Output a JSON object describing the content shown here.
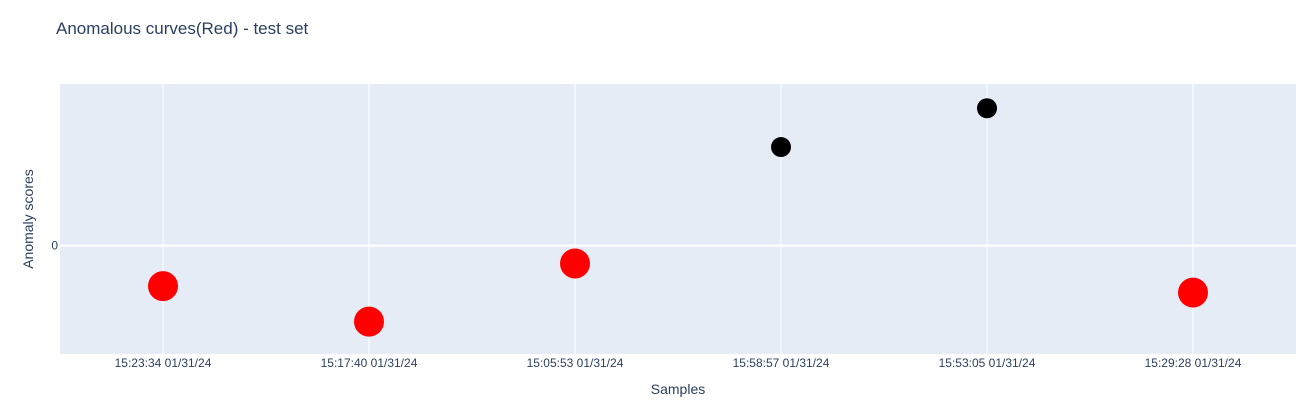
{
  "chart_data": {
    "type": "scatter",
    "title": "Anomalous curves(Red) - test set",
    "xlabel": "Samples",
    "ylabel": "Anomaly scores",
    "x": [
      "15:23:34 01/31/24",
      "15:17:40 01/31/24",
      "15:05:53 01/31/24",
      "15:58:57 01/31/24",
      "15:53:05 01/31/24",
      "15:29:28 01/31/24"
    ],
    "y": [
      -0.25,
      -0.47,
      -0.11,
      0.61,
      0.85,
      -0.29
    ],
    "anomalous": [
      true,
      true,
      true,
      false,
      false,
      true
    ],
    "yticks": [
      0
    ],
    "ylim": [
      -0.67,
      1.0
    ],
    "grid": true,
    "colors": {
      "anomalous": "#ff0000",
      "normal": "#000000",
      "plot_background": "#e5ecf6",
      "gridline": "#ffffff",
      "text": "#2a3f5f"
    }
  }
}
